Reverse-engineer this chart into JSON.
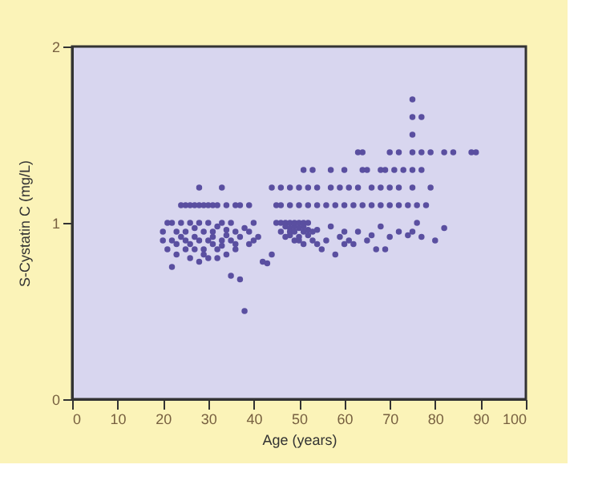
{
  "chart_data": {
    "type": "scatter",
    "xlabel": "Age (years)",
    "ylabel": "S-Cystatin C (mg/L)",
    "xlim": [
      0,
      100
    ],
    "ylim": [
      0,
      2
    ],
    "xticks": [
      0,
      10,
      20,
      30,
      40,
      50,
      60,
      70,
      80,
      90,
      100
    ],
    "yticks": [
      0,
      1,
      2
    ],
    "grid": false,
    "marker": "circle",
    "series": [
      {
        "color": "#5a4fa0",
        "x": [
          20,
          20,
          21,
          21,
          22,
          22,
          22,
          23,
          23,
          23,
          24,
          24,
          25,
          25,
          25,
          26,
          26,
          26,
          27,
          27,
          27,
          28,
          28,
          28,
          29,
          29,
          29,
          30,
          30,
          30,
          31,
          31,
          31,
          32,
          32,
          32,
          33,
          33,
          33,
          34,
          34,
          34,
          35,
          35,
          35,
          36,
          36,
          36,
          37,
          37,
          38,
          38,
          39,
          39,
          40,
          40,
          41,
          42,
          43,
          44,
          45,
          46,
          46,
          47,
          47,
          47,
          48,
          48,
          48,
          48,
          49,
          49,
          49,
          49,
          50,
          50,
          50,
          50,
          51,
          51,
          51,
          51,
          52,
          52,
          52,
          53,
          53,
          54,
          54,
          55,
          56,
          57,
          58,
          59,
          60,
          60,
          61,
          62,
          63,
          65,
          66,
          67,
          68,
          69,
          70,
          72,
          74,
          75,
          76,
          77,
          80,
          82,
          24,
          25,
          26,
          27,
          28,
          29,
          30,
          31,
          32,
          34,
          36,
          37,
          39,
          45,
          46,
          48,
          50,
          52,
          54,
          56,
          58,
          60,
          62,
          64,
          66,
          68,
          70,
          72,
          74,
          76,
          78,
          44,
          46,
          48,
          50,
          52,
          54,
          57,
          59,
          61,
          63,
          66,
          68,
          70,
          72,
          75,
          79,
          51,
          53,
          57,
          60,
          64,
          65,
          68,
          69,
          71,
          73,
          75,
          77,
          28,
          33,
          63,
          64,
          70,
          72,
          75,
          77,
          79,
          82,
          84,
          88,
          89,
          75,
          75,
          77,
          75
        ],
        "values": [
          0.9,
          0.95,
          0.85,
          1.0,
          0.75,
          0.9,
          1.0,
          0.88,
          0.95,
          0.82,
          0.92,
          1.0,
          0.85,
          0.95,
          0.9,
          0.8,
          1.0,
          0.88,
          0.92,
          0.85,
          0.97,
          0.78,
          0.9,
          1.0,
          0.85,
          0.95,
          0.82,
          0.9,
          1.0,
          0.8,
          0.88,
          0.95,
          0.92,
          0.85,
          0.98,
          0.8,
          0.9,
          1.0,
          0.87,
          0.93,
          0.82,
          0.96,
          0.7,
          0.9,
          1.0,
          0.85,
          0.95,
          0.88,
          0.68,
          0.92,
          0.5,
          0.97,
          0.88,
          0.95,
          0.9,
          1.0,
          0.92,
          0.78,
          0.77,
          0.82,
          1.0,
          0.95,
          1.0,
          0.92,
          0.98,
          1.0,
          0.95,
          0.97,
          1.0,
          0.93,
          0.9,
          0.98,
          1.0,
          0.95,
          0.92,
          0.97,
          1.0,
          0.9,
          0.95,
          1.0,
          0.98,
          0.88,
          0.93,
          1.0,
          0.96,
          0.9,
          0.95,
          0.88,
          0.96,
          0.85,
          0.9,
          0.98,
          0.82,
          0.92,
          0.88,
          0.95,
          0.9,
          0.88,
          0.95,
          0.9,
          0.93,
          0.85,
          0.98,
          0.85,
          0.92,
          0.95,
          0.93,
          0.95,
          1.0,
          0.92,
          0.9,
          0.97,
          1.1,
          1.1,
          1.1,
          1.1,
          1.1,
          1.1,
          1.1,
          1.1,
          1.1,
          1.1,
          1.1,
          1.1,
          1.1,
          1.1,
          1.1,
          1.1,
          1.1,
          1.1,
          1.1,
          1.1,
          1.1,
          1.1,
          1.1,
          1.1,
          1.1,
          1.1,
          1.1,
          1.1,
          1.1,
          1.1,
          1.1,
          1.2,
          1.2,
          1.2,
          1.2,
          1.2,
          1.2,
          1.2,
          1.2,
          1.2,
          1.2,
          1.2,
          1.2,
          1.2,
          1.2,
          1.2,
          1.2,
          1.3,
          1.3,
          1.3,
          1.3,
          1.3,
          1.3,
          1.3,
          1.3,
          1.3,
          1.3,
          1.3,
          1.3,
          1.2,
          1.2,
          1.4,
          1.4,
          1.4,
          1.4,
          1.4,
          1.4,
          1.4,
          1.4,
          1.4,
          1.4,
          1.4,
          1.5,
          1.7,
          1.6,
          1.6
        ]
      }
    ]
  }
}
